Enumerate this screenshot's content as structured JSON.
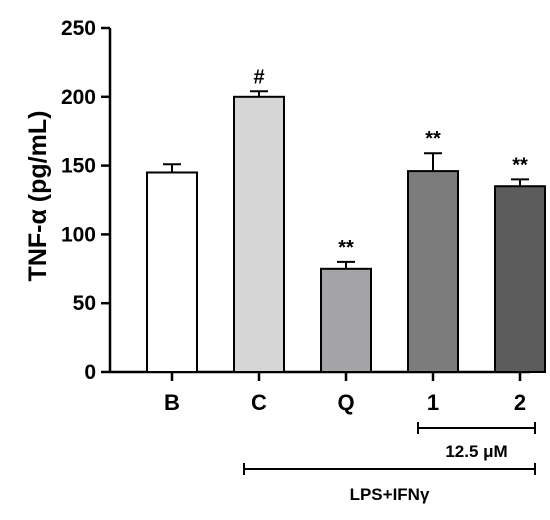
{
  "chart_data": {
    "type": "bar",
    "ylabel": "TNF-α (pg/mL)",
    "xlabel": "",
    "ylim": [
      0,
      250
    ],
    "yticks": [
      0,
      50,
      100,
      150,
      200,
      250
    ],
    "grid": false,
    "categories": [
      "B",
      "C",
      "Q",
      "1",
      "2"
    ],
    "values": [
      145,
      200,
      75,
      146,
      135
    ],
    "errors": [
      6,
      4,
      5,
      13,
      5
    ],
    "significance": [
      "",
      "#",
      "**",
      "**",
      "**"
    ],
    "colors": [
      "#ffffff",
      "#d6d6d6",
      "#a4a4a6",
      "#7c7c7c",
      "#5c5c5c"
    ],
    "brackets": [
      {
        "label": "12.5 μM",
        "from": "1",
        "to": "2"
      },
      {
        "label": "LPS+IFNγ",
        "from": "C",
        "to": "2"
      }
    ]
  }
}
